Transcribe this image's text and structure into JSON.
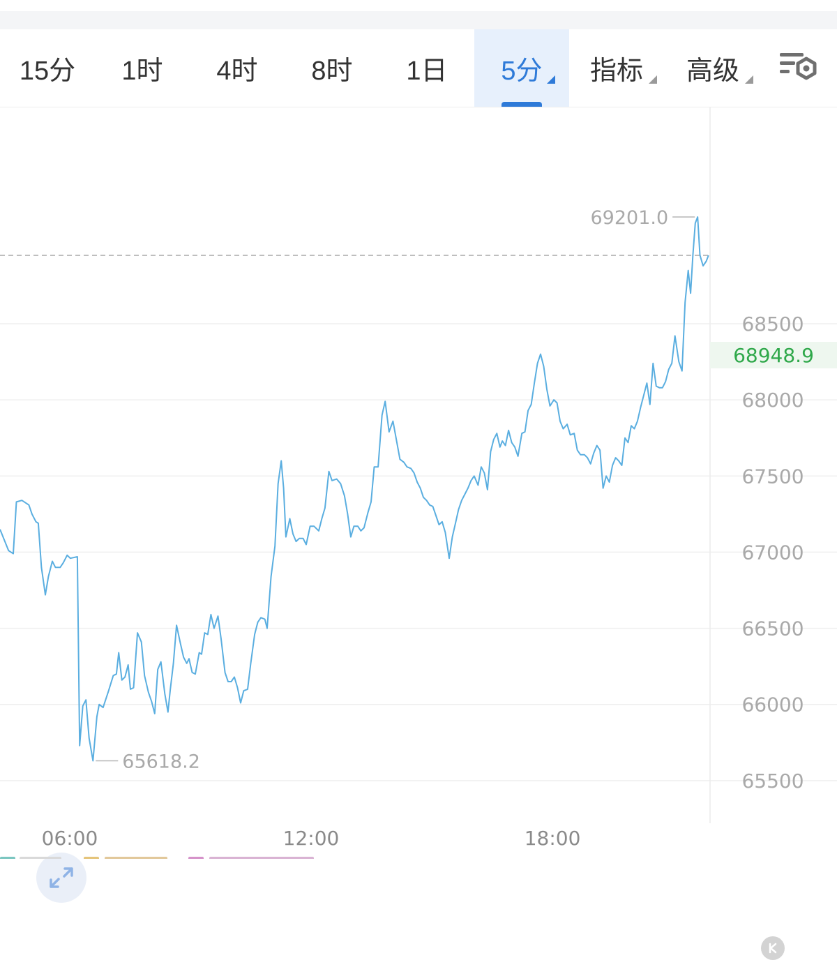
{
  "toolbar": {
    "timeframes": [
      {
        "label": "15分",
        "active": false
      },
      {
        "label": "1时",
        "active": false
      },
      {
        "label": "4时",
        "active": false
      },
      {
        "label": "8时",
        "active": false
      },
      {
        "label": "1日",
        "active": false
      },
      {
        "label": "5分",
        "active": true
      }
    ],
    "indicators_label": "指标",
    "advanced_label": "高级",
    "settings_icon": "chart-settings-icon"
  },
  "chart_data": {
    "type": "line",
    "title": "",
    "xlabel": "",
    "ylabel": "",
    "x_ticks": [
      "06:00",
      "12:00",
      "18:00"
    ],
    "y_ticks": [
      65500,
      66000,
      66500,
      67000,
      67500,
      68000,
      68500
    ],
    "ylim": [
      65220,
      69920
    ],
    "grid": true,
    "current_price": "68948.9",
    "high_label": "69201.0",
    "low_label": "65618.2",
    "series": [
      {
        "color": "#5aaee0",
        "points": [
          [
            0.0,
            67150
          ],
          [
            0.55,
            67010
          ],
          [
            0.85,
            66990
          ],
          [
            1.05,
            67330
          ],
          [
            1.4,
            67340
          ],
          [
            1.85,
            67310
          ],
          [
            2.05,
            67250
          ],
          [
            2.3,
            67200
          ],
          [
            2.45,
            67190
          ],
          [
            2.65,
            66900
          ],
          [
            2.9,
            66720
          ],
          [
            3.1,
            66840
          ],
          [
            3.35,
            66940
          ],
          [
            3.55,
            66900
          ],
          [
            3.85,
            66900
          ],
          [
            4.05,
            66930
          ],
          [
            4.3,
            66980
          ],
          [
            4.5,
            66960
          ],
          [
            4.95,
            66970
          ],
          [
            5.1,
            65730
          ],
          [
            5.3,
            65990
          ],
          [
            5.5,
            66030
          ],
          [
            5.7,
            65780
          ],
          [
            5.95,
            65630
          ],
          [
            6.2,
            65920
          ],
          [
            6.35,
            66000
          ],
          [
            6.6,
            65980
          ],
          [
            6.95,
            66090
          ],
          [
            7.25,
            66190
          ],
          [
            7.45,
            66200
          ],
          [
            7.6,
            66340
          ],
          [
            7.8,
            66160
          ],
          [
            8.0,
            66180
          ],
          [
            8.2,
            66260
          ],
          [
            8.35,
            66100
          ],
          [
            8.55,
            66110
          ],
          [
            8.8,
            66470
          ],
          [
            9.05,
            66410
          ],
          [
            9.25,
            66190
          ],
          [
            9.5,
            66080
          ],
          [
            9.7,
            66020
          ],
          [
            9.9,
            65940
          ],
          [
            10.1,
            66230
          ],
          [
            10.3,
            66280
          ],
          [
            10.55,
            66070
          ],
          [
            10.75,
            65950
          ],
          [
            10.9,
            66100
          ],
          [
            11.1,
            66270
          ],
          [
            11.3,
            66520
          ],
          [
            11.55,
            66400
          ],
          [
            11.75,
            66310
          ],
          [
            11.95,
            66270
          ],
          [
            12.1,
            66300
          ],
          [
            12.3,
            66210
          ],
          [
            12.5,
            66200
          ],
          [
            12.75,
            66340
          ],
          [
            12.9,
            66330
          ],
          [
            13.1,
            66470
          ],
          [
            13.3,
            66460
          ],
          [
            13.5,
            66590
          ],
          [
            13.7,
            66500
          ],
          [
            13.95,
            66580
          ],
          [
            14.15,
            66430
          ],
          [
            14.4,
            66210
          ],
          [
            14.6,
            66150
          ],
          [
            14.8,
            66150
          ],
          [
            15.0,
            66180
          ],
          [
            15.2,
            66110
          ],
          [
            15.4,
            66010
          ],
          [
            15.6,
            66090
          ],
          [
            15.85,
            66100
          ],
          [
            16.05,
            66270
          ],
          [
            16.3,
            66460
          ],
          [
            16.5,
            66540
          ],
          [
            16.7,
            66570
          ],
          [
            16.95,
            66560
          ],
          [
            17.1,
            66500
          ],
          [
            17.35,
            66840
          ],
          [
            17.6,
            67040
          ],
          [
            17.8,
            67450
          ],
          [
            18.0,
            67600
          ],
          [
            18.15,
            67420
          ],
          [
            18.3,
            67100
          ],
          [
            18.55,
            67220
          ],
          [
            18.75,
            67120
          ],
          [
            18.95,
            67070
          ],
          [
            19.15,
            67090
          ],
          [
            19.4,
            67090
          ],
          [
            19.6,
            67050
          ],
          [
            19.85,
            67170
          ],
          [
            20.1,
            67170
          ],
          [
            20.4,
            67140
          ],
          [
            20.6,
            67220
          ],
          [
            20.8,
            67290
          ],
          [
            21.05,
            67530
          ],
          [
            21.25,
            67470
          ],
          [
            21.55,
            67480
          ],
          [
            21.8,
            67450
          ],
          [
            22.05,
            67370
          ],
          [
            22.25,
            67250
          ],
          [
            22.45,
            67100
          ],
          [
            22.65,
            67170
          ],
          [
            22.9,
            67170
          ],
          [
            23.1,
            67140
          ],
          [
            23.3,
            67160
          ],
          [
            23.55,
            67260
          ],
          [
            23.75,
            67330
          ],
          [
            23.95,
            67560
          ],
          [
            24.2,
            67560
          ],
          [
            24.45,
            67900
          ],
          [
            24.65,
            67990
          ],
          [
            24.9,
            67790
          ],
          [
            25.15,
            67860
          ],
          [
            25.4,
            67720
          ],
          [
            25.6,
            67610
          ],
          [
            25.85,
            67590
          ],
          [
            26.05,
            67560
          ],
          [
            26.3,
            67550
          ],
          [
            26.5,
            67520
          ],
          [
            26.7,
            67460
          ],
          [
            26.9,
            67420
          ],
          [
            27.1,
            67360
          ],
          [
            27.3,
            67340
          ],
          [
            27.5,
            67310
          ],
          [
            27.7,
            67300
          ],
          [
            27.9,
            67240
          ],
          [
            28.1,
            67180
          ],
          [
            28.3,
            67200
          ],
          [
            28.5,
            67130
          ],
          [
            28.75,
            66960
          ],
          [
            28.95,
            67100
          ],
          [
            29.15,
            67190
          ],
          [
            29.35,
            67280
          ],
          [
            29.55,
            67340
          ],
          [
            29.75,
            67380
          ],
          [
            29.95,
            67420
          ],
          [
            30.15,
            67470
          ],
          [
            30.35,
            67500
          ],
          [
            30.6,
            67440
          ],
          [
            30.8,
            67560
          ],
          [
            31.0,
            67520
          ],
          [
            31.2,
            67410
          ],
          [
            31.4,
            67660
          ],
          [
            31.6,
            67740
          ],
          [
            31.8,
            67780
          ],
          [
            32.0,
            67690
          ],
          [
            32.15,
            67730
          ],
          [
            32.35,
            67700
          ],
          [
            32.55,
            67800
          ],
          [
            32.75,
            67720
          ],
          [
            32.95,
            67690
          ],
          [
            33.15,
            67630
          ],
          [
            33.4,
            67780
          ],
          [
            33.6,
            67790
          ],
          [
            33.8,
            67930
          ],
          [
            34.0,
            67970
          ],
          [
            34.2,
            68110
          ],
          [
            34.4,
            68240
          ],
          [
            34.6,
            68300
          ],
          [
            34.8,
            68220
          ],
          [
            35.0,
            68070
          ],
          [
            35.2,
            67960
          ],
          [
            35.45,
            68000
          ],
          [
            35.65,
            67980
          ],
          [
            35.85,
            67860
          ],
          [
            36.05,
            67810
          ],
          [
            36.3,
            67840
          ],
          [
            36.5,
            67770
          ],
          [
            36.75,
            67780
          ],
          [
            36.95,
            67670
          ],
          [
            37.15,
            67640
          ],
          [
            37.4,
            67640
          ],
          [
            37.6,
            67620
          ],
          [
            37.8,
            67580
          ],
          [
            38.0,
            67650
          ],
          [
            38.2,
            67700
          ],
          [
            38.4,
            67670
          ],
          [
            38.6,
            67420
          ],
          [
            38.8,
            67500
          ],
          [
            39.0,
            67460
          ],
          [
            39.2,
            67570
          ],
          [
            39.4,
            67620
          ],
          [
            39.6,
            67600
          ],
          [
            39.8,
            67570
          ],
          [
            40.0,
            67750
          ],
          [
            40.2,
            67720
          ],
          [
            40.4,
            67830
          ],
          [
            40.6,
            67810
          ],
          [
            40.8,
            67860
          ],
          [
            41.0,
            67950
          ],
          [
            41.2,
            68030
          ],
          [
            41.4,
            68110
          ],
          [
            41.6,
            67970
          ],
          [
            41.8,
            68240
          ],
          [
            42.0,
            68090
          ],
          [
            42.2,
            68080
          ],
          [
            42.4,
            68080
          ],
          [
            42.6,
            68120
          ],
          [
            42.8,
            68200
          ],
          [
            43.0,
            68240
          ],
          [
            43.2,
            68420
          ],
          [
            43.45,
            68250
          ],
          [
            43.65,
            68190
          ],
          [
            43.85,
            68640
          ],
          [
            44.05,
            68850
          ],
          [
            44.2,
            68700
          ],
          [
            44.35,
            68950
          ],
          [
            44.5,
            69160
          ],
          [
            44.65,
            69201
          ],
          [
            44.8,
            68950
          ],
          [
            45.0,
            68880
          ],
          [
            45.2,
            68910
          ],
          [
            45.35,
            68948.9
          ]
        ]
      }
    ]
  }
}
